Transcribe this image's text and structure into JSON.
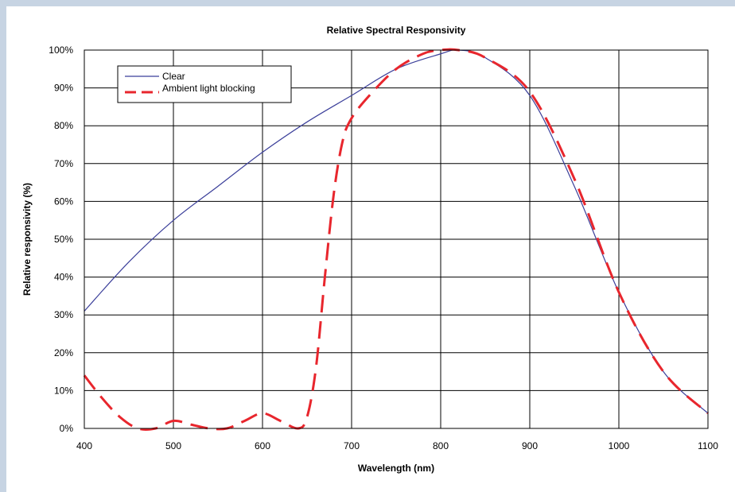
{
  "chart_data": {
    "type": "line",
    "title": "Relative Spectral Responsivity",
    "xlabel": "Wavelength (nm)",
    "ylabel": "Relative responsivity (%)",
    "xlim": [
      400,
      1100
    ],
    "ylim": [
      0,
      100
    ],
    "x_ticks": [
      "400",
      "500",
      "600",
      "700",
      "800",
      "900",
      "1000",
      "1100"
    ],
    "y_ticks": [
      "0%",
      "10%",
      "20%",
      "30%",
      "40%",
      "50%",
      "60%",
      "70%",
      "80%",
      "90%",
      "100%"
    ],
    "grid": true,
    "legend_position": "top-left",
    "series": [
      {
        "name": "Clear",
        "color": "#3b3f9a",
        "style": "solid",
        "x": [
          400,
          450,
          500,
          550,
          600,
          650,
          700,
          750,
          800,
          820,
          850,
          900,
          950,
          1000,
          1050,
          1100
        ],
        "y": [
          31,
          44,
          55,
          64,
          73,
          81,
          88,
          95,
          99,
          100,
          98,
          88,
          64,
          36,
          15,
          4
        ]
      },
      {
        "name": "Ambient light blocking",
        "color": "#e8262d",
        "style": "dashed",
        "x": [
          400,
          420,
          440,
          460,
          480,
          500,
          520,
          540,
          560,
          580,
          600,
          620,
          640,
          650,
          660,
          670,
          680,
          690,
          700,
          720,
          750,
          780,
          800,
          820,
          850,
          900,
          950,
          1000,
          1050,
          1100
        ],
        "y": [
          14,
          8,
          3,
          0,
          0,
          2,
          1,
          0,
          0,
          2,
          4,
          2,
          0,
          3,
          16,
          40,
          62,
          76,
          82,
          88,
          95,
          99,
          100,
          100,
          98,
          89,
          66,
          36,
          15,
          4
        ]
      }
    ]
  }
}
